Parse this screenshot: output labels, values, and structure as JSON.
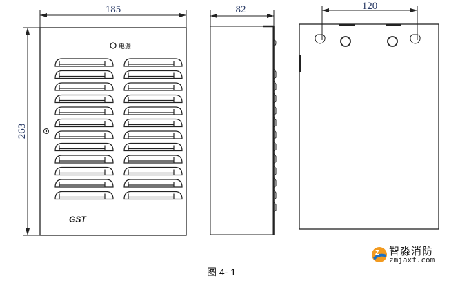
{
  "front_view": {
    "width_dim": "185",
    "height_dim": "263",
    "power_label": "电源",
    "brand_logo": "GST",
    "louver_rows": 12,
    "louver_columns": 2
  },
  "side_view": {
    "depth_dim": "82"
  },
  "back_view": {
    "hole_spacing_dim": "120"
  },
  "caption": "图 4- 1",
  "watermark": {
    "name": "智淼消防",
    "site": "zmjaxf.com"
  }
}
